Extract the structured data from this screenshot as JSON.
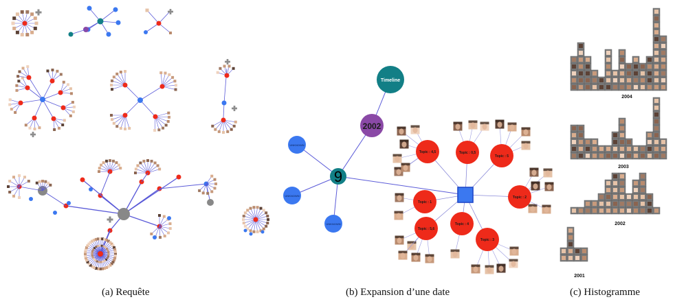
{
  "captions": {
    "a": "(a)  Requête",
    "b": "(b)  Expansion d’une date",
    "c": "(c)  Histogramme"
  },
  "expansion": {
    "date_label": "2002",
    "center_label": "9",
    "timeline_label": "Timeline",
    "unknown_label": "UNKNOWN",
    "topics": [
      "Topic : 4,5",
      "Topic : 0,5",
      "Topic : 5",
      "Topic : 2",
      "Topic : 3",
      "Topic : 4",
      "Topic : 5,6",
      "Topic : 1"
    ]
  },
  "histogram": {
    "years": [
      "2004",
      "2003",
      "2002",
      "2001"
    ]
  },
  "colors": {
    "red_node": "#ee2a1a",
    "blue_node": "#3b78f0",
    "teal_node": "#127f86",
    "purple_node": "#8a49a6",
    "gray_node": "#888888",
    "edge": "#5a5ad8",
    "face_light": "#d7a98a",
    "face_dark": "#6b4b3a",
    "hist_bg": "#7c7c7c"
  }
}
